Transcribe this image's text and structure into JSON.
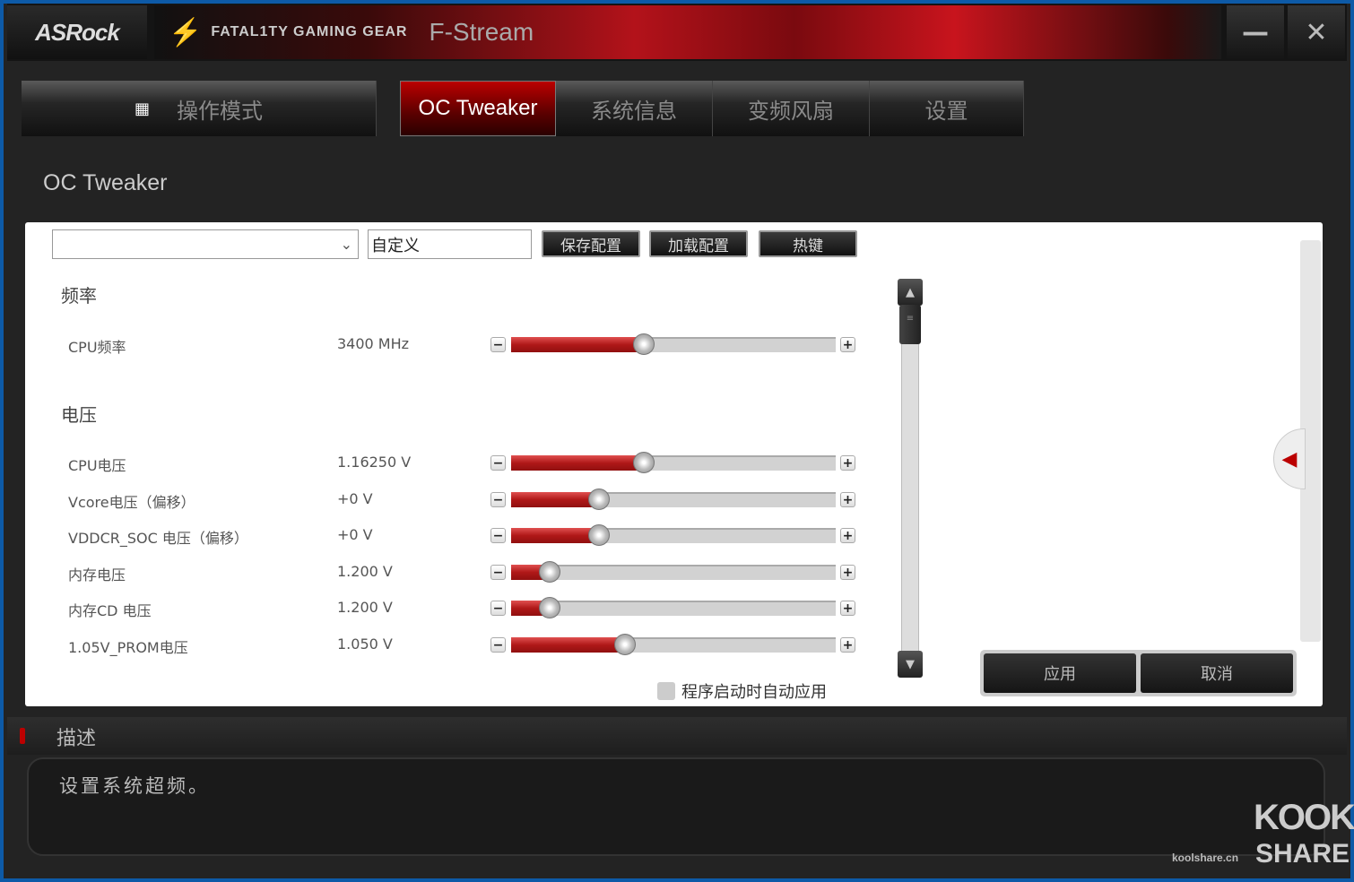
{
  "title_bar": {
    "brand": "ASRock",
    "product_logo": "FATAL1TY GAMING GEAR",
    "app_name": "F-Stream",
    "minimize_icon": "minus",
    "close_icon": "x"
  },
  "nav": {
    "mode_label": "操作模式",
    "tabs": [
      {
        "label": "OC Tweaker",
        "active": true
      },
      {
        "label": "系统信息"
      },
      {
        "label": "变频风扇"
      },
      {
        "label": "设置"
      }
    ]
  },
  "page_title": "OC Tweaker",
  "toolbar": {
    "profile_select": "",
    "profile_name": "自定义",
    "save": "保存配置",
    "load": "加载配置",
    "hotkey": "热键"
  },
  "sections": {
    "frequency": "频率",
    "voltage": "电压"
  },
  "settings": [
    {
      "label": "CPU频率",
      "value": "3400 MHz",
      "level": 0.41
    },
    {
      "label": "CPU电压",
      "value": "1.16250 V",
      "level": 0.41
    },
    {
      "label": "Vcore电压（偏移）",
      "value": "+0 V",
      "level": 0.27
    },
    {
      "label": "VDDCR_SOC 电压（偏移）",
      "value": "+0 V",
      "level": 0.27
    },
    {
      "label": "内存电压",
      "value": "1.200 V",
      "level": 0.12
    },
    {
      "label": "内存CD 电压",
      "value": "1.200 V",
      "level": 0.12
    },
    {
      "label": "1.05V_PROM电压",
      "value": "1.050 V",
      "level": 0.35
    }
  ],
  "auto_apply": {
    "label": "程序启动时自动应用",
    "checked": false
  },
  "actions": {
    "apply": "应用",
    "cancel": "取消"
  },
  "description": {
    "title": "描述",
    "text": "设置系统超频。"
  },
  "watermark": {
    "line1": "KOOK",
    "line2": "SHARE",
    "site": "koolshare.cn"
  },
  "colors": {
    "accent": "#b00000",
    "background": "#232323"
  }
}
